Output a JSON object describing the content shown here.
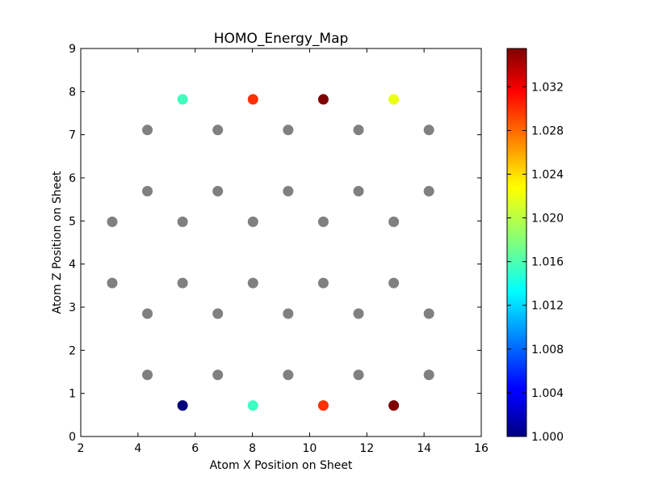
{
  "chart_data": {
    "type": "scatter",
    "title": "HOMO_Energy_Map",
    "xlabel": "Atom X Position on Sheet",
    "ylabel": "Atom Z Position on Sheet",
    "xlim": [
      2,
      16
    ],
    "ylim": [
      0,
      9
    ],
    "xticks": [
      "2",
      "4",
      "6",
      "8",
      "10",
      "12",
      "14",
      "16"
    ],
    "yticks": [
      "0",
      "1",
      "2",
      "3",
      "4",
      "5",
      "6",
      "7",
      "8",
      "9"
    ],
    "grid": false,
    "neutral_color": "#808080",
    "gray_points": [
      {
        "x": 4.33,
        "y": 7.11
      },
      {
        "x": 6.79,
        "y": 7.11
      },
      {
        "x": 9.25,
        "y": 7.11
      },
      {
        "x": 11.71,
        "y": 7.11
      },
      {
        "x": 14.17,
        "y": 7.11
      },
      {
        "x": 4.33,
        "y": 5.69
      },
      {
        "x": 6.79,
        "y": 5.69
      },
      {
        "x": 9.25,
        "y": 5.69
      },
      {
        "x": 11.71,
        "y": 5.69
      },
      {
        "x": 14.17,
        "y": 5.69
      },
      {
        "x": 3.1,
        "y": 4.98
      },
      {
        "x": 5.56,
        "y": 4.98
      },
      {
        "x": 8.02,
        "y": 4.98
      },
      {
        "x": 10.48,
        "y": 4.98
      },
      {
        "x": 12.94,
        "y": 4.98
      },
      {
        "x": 3.1,
        "y": 3.56
      },
      {
        "x": 5.56,
        "y": 3.56
      },
      {
        "x": 8.02,
        "y": 3.56
      },
      {
        "x": 10.48,
        "y": 3.56
      },
      {
        "x": 12.94,
        "y": 3.56
      },
      {
        "x": 4.33,
        "y": 2.85
      },
      {
        "x": 6.79,
        "y": 2.85
      },
      {
        "x": 9.25,
        "y": 2.85
      },
      {
        "x": 11.71,
        "y": 2.85
      },
      {
        "x": 14.17,
        "y": 2.85
      },
      {
        "x": 4.33,
        "y": 1.43
      },
      {
        "x": 6.79,
        "y": 1.43
      },
      {
        "x": 9.25,
        "y": 1.43
      },
      {
        "x": 11.71,
        "y": 1.43
      },
      {
        "x": 14.17,
        "y": 1.43
      }
    ],
    "colored_points": [
      {
        "x": 5.56,
        "y": 7.82,
        "value": 1.0155
      },
      {
        "x": 8.02,
        "y": 7.82,
        "value": 1.03
      },
      {
        "x": 10.48,
        "y": 7.82,
        "value": 1.0355
      },
      {
        "x": 12.94,
        "y": 7.82,
        "value": 1.022
      },
      {
        "x": 5.56,
        "y": 0.72,
        "value": 1.0
      },
      {
        "x": 8.02,
        "y": 0.72,
        "value": 1.0155
      },
      {
        "x": 10.48,
        "y": 0.72,
        "value": 1.03
      },
      {
        "x": 12.94,
        "y": 0.72,
        "value": 1.0355
      }
    ],
    "colorbar": {
      "colormap": "jet",
      "range": [
        1.0,
        1.0355
      ],
      "ticks": [
        "1.000",
        "1.004",
        "1.008",
        "1.012",
        "1.016",
        "1.020",
        "1.024",
        "1.028",
        "1.032"
      ],
      "placement": "right"
    }
  }
}
